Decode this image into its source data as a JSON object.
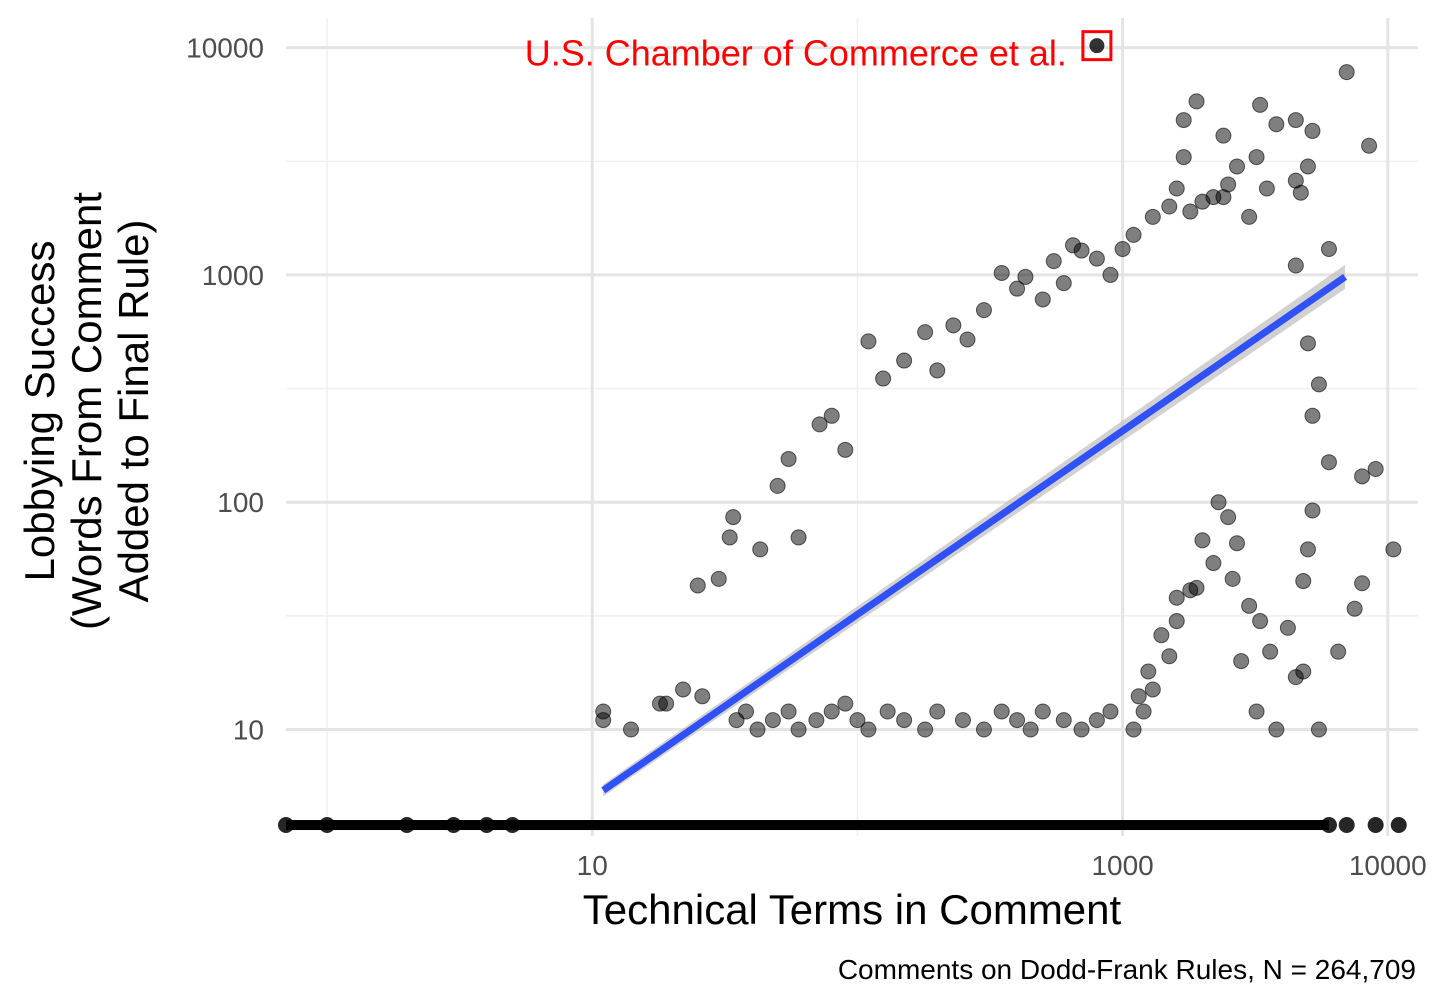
{
  "chart_data": {
    "type": "scatter",
    "xlabel": "Technical Terms in Comment",
    "ylabel_lines": [
      "Lobbying Success",
      "(Words From Comment",
      "Added to Final Rule)"
    ],
    "caption": "Comments on Dodd-Frank Rules, N = 264,709",
    "x_scale": "log10",
    "y_scale": "log10",
    "xlim": [
      0.7,
      13000
    ],
    "ylim": [
      3.4,
      13500
    ],
    "x_ticks": [
      {
        "value": 10,
        "label": "10"
      },
      {
        "value": 1000,
        "label": "1000"
      },
      {
        "value": 10000,
        "label": "10000"
      }
    ],
    "y_ticks": [
      {
        "value": 10,
        "label": "10"
      },
      {
        "value": 100,
        "label": "100"
      },
      {
        "value": 1000,
        "label": "1000"
      },
      {
        "value": 10000,
        "label": "10000"
      }
    ],
    "x_minor_ticks": [
      1,
      100
    ],
    "y_minor_ticks": [
      31.6,
      316,
      3160
    ],
    "grid": true,
    "point_color": "#000000",
    "point_opacity": 0.5,
    "fit_line": {
      "color": "#3050f8",
      "band_color": "#bdbdbd",
      "x": [
        11,
        6900
      ],
      "y": [
        5.4,
        980
      ]
    },
    "highlight": {
      "label": "U.S. Chamber of Commerce et al.",
      "color": "#ff0000",
      "x": 800,
      "y": 10200
    },
    "zero_band": {
      "y": 3.8,
      "x_range": [
        0.7,
        6000
      ]
    },
    "points": [
      [
        11,
        11
      ],
      [
        11,
        12
      ],
      [
        14,
        10
      ],
      [
        18,
        13
      ],
      [
        26,
        14
      ],
      [
        19,
        13
      ],
      [
        22,
        15
      ],
      [
        30,
        46
      ],
      [
        33,
        70
      ],
      [
        34,
        86
      ],
      [
        25,
        43
      ],
      [
        43,
        62
      ],
      [
        50,
        118
      ],
      [
        55,
        155
      ],
      [
        60,
        70
      ],
      [
        72,
        220
      ],
      [
        80,
        240
      ],
      [
        90,
        170
      ],
      [
        110,
        510
      ],
      [
        125,
        350
      ],
      [
        150,
        420
      ],
      [
        180,
        560
      ],
      [
        200,
        380
      ],
      [
        230,
        600
      ],
      [
        260,
        520
      ],
      [
        300,
        700
      ],
      [
        350,
        1020
      ],
      [
        400,
        870
      ],
      [
        430,
        980
      ],
      [
        500,
        780
      ],
      [
        550,
        1150
      ],
      [
        600,
        920
      ],
      [
        650,
        1350
      ],
      [
        700,
        1280
      ],
      [
        800,
        1180
      ],
      [
        900,
        1000
      ],
      [
        1000,
        1300
      ],
      [
        1100,
        1500
      ],
      [
        1300,
        1800
      ],
      [
        1500,
        2000
      ],
      [
        1600,
        2400
      ],
      [
        1800,
        1900
      ],
      [
        2000,
        2100
      ],
      [
        2200,
        2200
      ],
      [
        2500,
        2500
      ],
      [
        2700,
        3000
      ],
      [
        3000,
        1800
      ],
      [
        3500,
        2400
      ],
      [
        3800,
        4600
      ],
      [
        4500,
        2600
      ],
      [
        4700,
        2300
      ],
      [
        5000,
        3000
      ],
      [
        3300,
        5600
      ],
      [
        3200,
        3300
      ],
      [
        2400,
        4100
      ],
      [
        1700,
        3300
      ],
      [
        1900,
        5800
      ],
      [
        1700,
        4800
      ],
      [
        2400,
        2200
      ],
      [
        4500,
        4800
      ],
      [
        5200,
        4300
      ],
      [
        7000,
        7800
      ],
      [
        8500,
        3700
      ],
      [
        4500,
        1100
      ],
      [
        5000,
        500
      ],
      [
        6000,
        1300
      ],
      [
        5500,
        330
      ],
      [
        5200,
        240
      ],
      [
        6000,
        150
      ],
      [
        5200,
        92
      ],
      [
        5000,
        62
      ],
      [
        4800,
        45
      ],
      [
        8000,
        130
      ],
      [
        9000,
        140
      ],
      [
        10500,
        62
      ],
      [
        8000,
        44
      ],
      [
        7500,
        34
      ],
      [
        6500,
        22
      ],
      [
        5500,
        10
      ],
      [
        4500,
        17
      ],
      [
        3800,
        10
      ],
      [
        3200,
        12
      ],
      [
        2800,
        20
      ],
      [
        2700,
        66
      ],
      [
        2500,
        86
      ],
      [
        2300,
        100
      ],
      [
        2000,
        68
      ],
      [
        1800,
        41
      ],
      [
        1600,
        30
      ],
      [
        1500,
        21
      ],
      [
        1300,
        15
      ],
      [
        1200,
        12
      ],
      [
        1100,
        10
      ],
      [
        4200,
        28
      ],
      [
        3600,
        22
      ],
      [
        4800,
        18
      ],
      [
        3300,
        30
      ],
      [
        3000,
        35
      ],
      [
        2600,
        46
      ],
      [
        2200,
        54
      ],
      [
        1900,
        42
      ],
      [
        1600,
        38
      ],
      [
        1400,
        26
      ],
      [
        1250,
        18
      ],
      [
        1150,
        14
      ],
      [
        900,
        12
      ],
      [
        800,
        11
      ],
      [
        700,
        10
      ],
      [
        600,
        11
      ],
      [
        500,
        12
      ],
      [
        450,
        10
      ],
      [
        400,
        11
      ],
      [
        350,
        12
      ],
      [
        300,
        10
      ],
      [
        250,
        11
      ],
      [
        200,
        12
      ],
      [
        180,
        10
      ],
      [
        150,
        11
      ],
      [
        130,
        12
      ],
      [
        110,
        10
      ],
      [
        100,
        11
      ],
      [
        90,
        13
      ],
      [
        80,
        12
      ],
      [
        70,
        11
      ],
      [
        60,
        10
      ],
      [
        55,
        12
      ],
      [
        48,
        11
      ],
      [
        42,
        10
      ],
      [
        38,
        12
      ],
      [
        35,
        11
      ]
    ]
  }
}
